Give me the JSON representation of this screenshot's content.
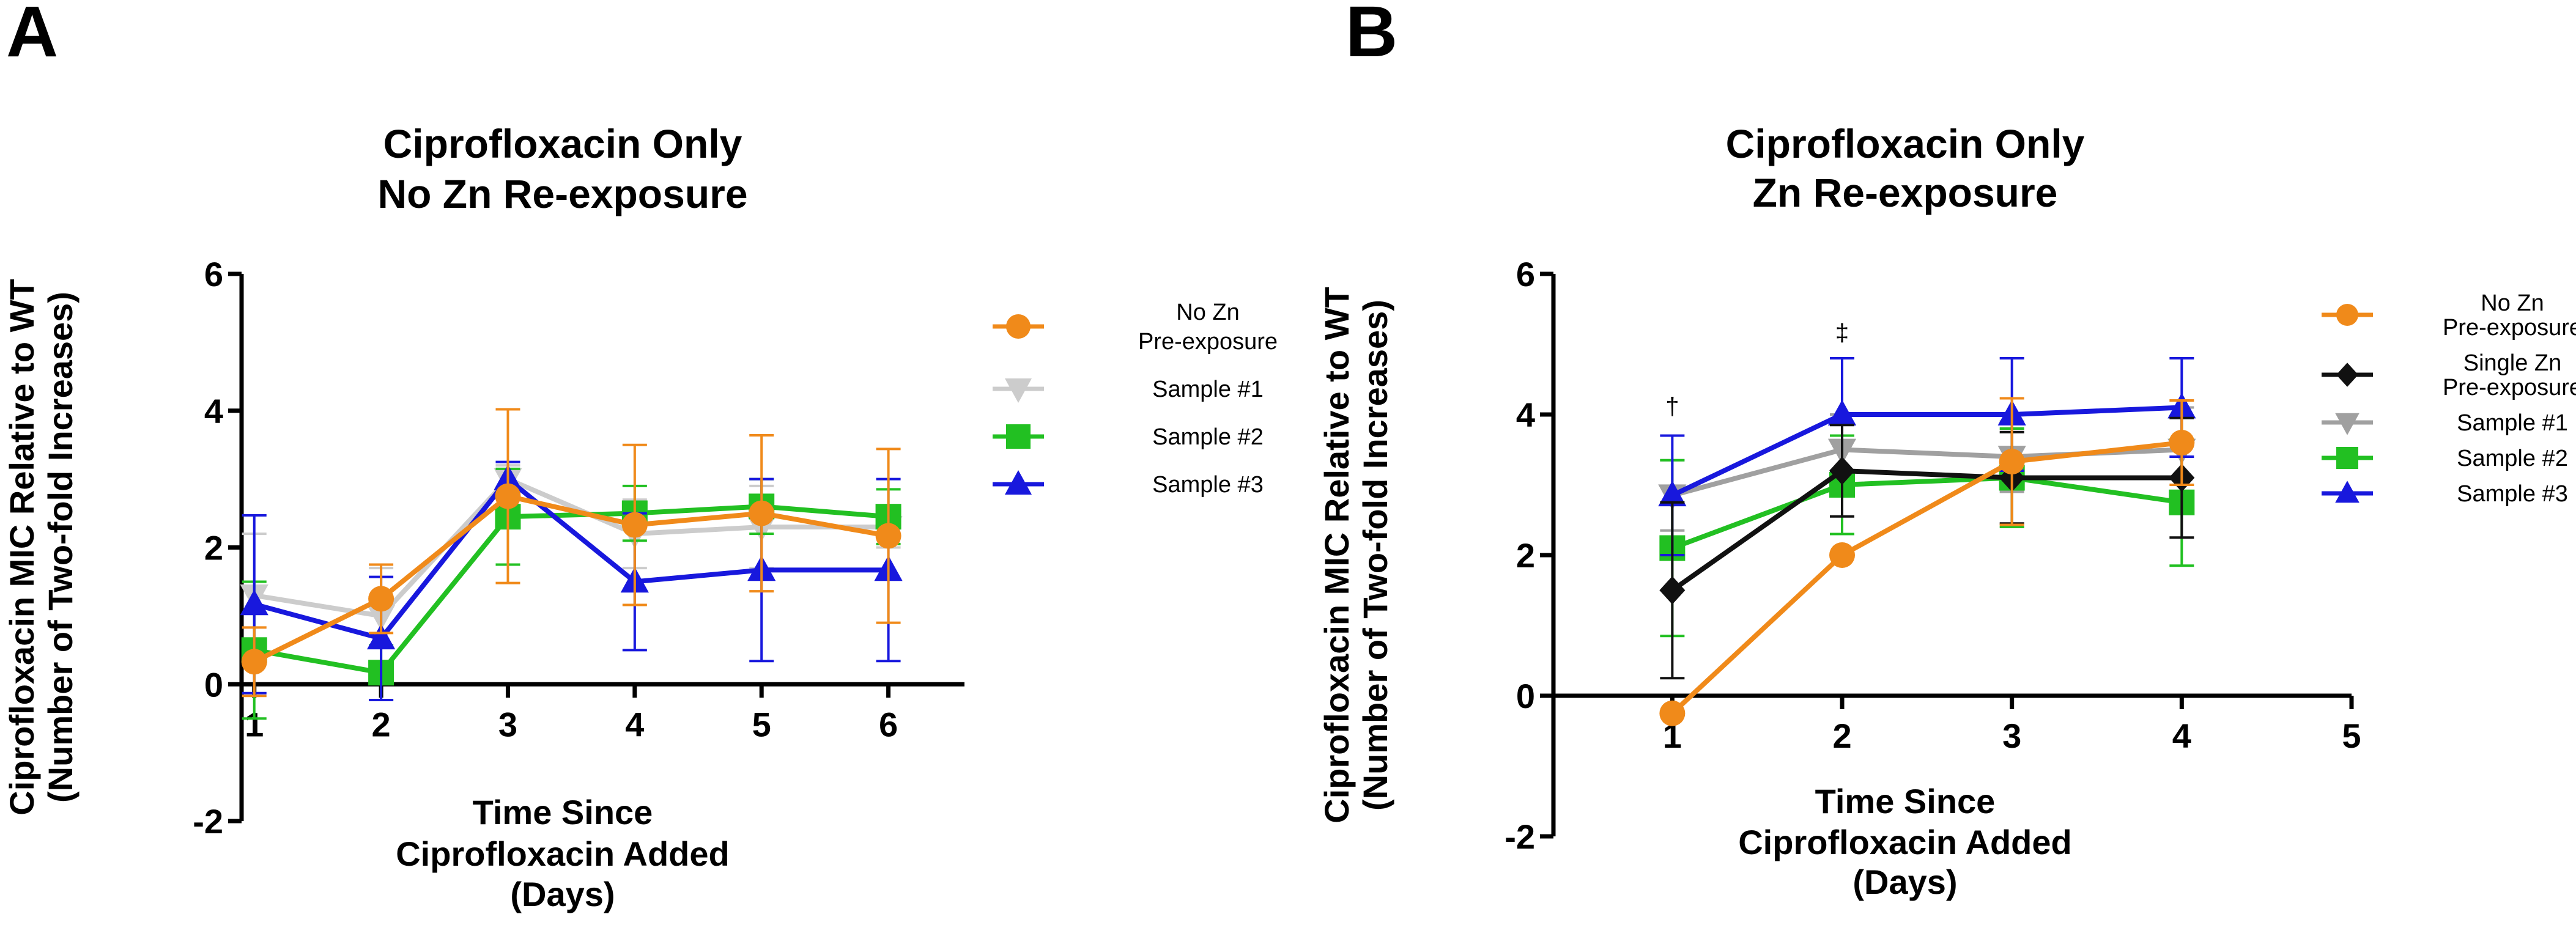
{
  "chart_data": [
    {
      "panel": "A",
      "type": "line",
      "title": [
        "Ciprofloxacin Only",
        "No Zn Re-exposure"
      ],
      "xlabel": [
        "Time Since",
        "Ciprofloxacin Added",
        "(Days)"
      ],
      "ylabel": [
        "Ciprofloxacin MIC Relative to WT",
        "(Number of Two-fold Increases)"
      ],
      "xlim": [
        0.9,
        6.6
      ],
      "ylim": [
        -2,
        6
      ],
      "xticks": [
        1,
        2,
        3,
        4,
        5,
        6
      ],
      "yticks": [
        -2,
        0,
        2,
        4,
        6
      ],
      "series": [
        {
          "name": "Sample #1",
          "legend_label": [
            "Sample #1"
          ],
          "color": "#cccccc",
          "marker": "triangle-down",
          "x": [
            1,
            2,
            3,
            4,
            5,
            6
          ],
          "y": [
            1.3,
            1.0,
            3.0,
            2.2,
            2.3,
            2.3
          ],
          "err": [
            0.9,
            0.7,
            0.2,
            0.5,
            0.6,
            0.3
          ]
        },
        {
          "name": "Sample #2",
          "legend_label": [
            "Sample #2"
          ],
          "color": "#22c022",
          "marker": "square",
          "x": [
            1,
            2,
            3,
            4,
            5,
            6
          ],
          "y": [
            0.5,
            0.17,
            2.45,
            2.5,
            2.6,
            2.45
          ],
          "err": [
            1.0,
            0.4,
            0.7,
            0.4,
            0.4,
            0.4
          ]
        },
        {
          "name": "Sample #3",
          "legend_label": [
            "Sample #3"
          ],
          "color": "#1818dd",
          "marker": "triangle-up",
          "x": [
            1,
            2,
            3,
            4,
            5,
            6
          ],
          "y": [
            1.17,
            0.67,
            3.0,
            1.5,
            1.67,
            1.67
          ],
          "err": [
            1.3,
            0.9,
            0.25,
            1.0,
            1.33,
            1.33
          ]
        },
        {
          "name": "No Zn Pre-exposure",
          "legend_label": [
            "No Zn",
            "Pre-exposure"
          ],
          "color": "#f08a1a",
          "marker": "circle",
          "x": [
            1,
            2,
            3,
            4,
            5,
            6
          ],
          "y": [
            0.33,
            1.25,
            2.75,
            2.33,
            2.5,
            2.17
          ],
          "err": [
            0.5,
            0.5,
            1.27,
            1.17,
            1.14,
            1.27
          ]
        }
      ],
      "legend_order": [
        3,
        0,
        1,
        2
      ],
      "annotations": []
    },
    {
      "panel": "B",
      "type": "line",
      "title": [
        "Ciprofloxacin Only",
        "Zn Re-exposure"
      ],
      "xlabel": [
        "Time Since",
        "Ciprofloxacin Added",
        "(Days)"
      ],
      "ylabel": [
        "Ciprofloxacin MIC Relative to WT",
        "(Number of Two-fold Increases)"
      ],
      "xlim": [
        0.3,
        5
      ],
      "ylim": [
        -2,
        6
      ],
      "xticks": [
        1,
        2,
        3,
        4,
        5
      ],
      "yticks": [
        -2,
        0,
        2,
        4,
        6
      ],
      "series": [
        {
          "name": "Sample #1",
          "legend_label": [
            "Sample #1"
          ],
          "color": "#a0a0a0",
          "marker": "triangle-down",
          "x": [
            1,
            2,
            3,
            4
          ],
          "y": [
            2.85,
            3.5,
            3.4,
            3.5
          ],
          "err": [
            0.5,
            0.5,
            0.5,
            0.6
          ]
        },
        {
          "name": "Sample #2",
          "legend_label": [
            "Sample #2"
          ],
          "color": "#22c022",
          "marker": "square",
          "x": [
            1,
            2,
            3,
            4
          ],
          "y": [
            2.1,
            3.0,
            3.1,
            2.75
          ],
          "err": [
            1.25,
            0.7,
            0.7,
            0.9
          ]
        },
        {
          "name": "Sample #3",
          "legend_label": [
            "Sample #3"
          ],
          "color": "#1818dd",
          "marker": "triangle-up",
          "x": [
            1,
            2,
            3,
            4
          ],
          "y": [
            2.85,
            4.0,
            4.0,
            4.1
          ],
          "err": [
            0.85,
            0.8,
            0.8,
            0.7
          ]
        },
        {
          "name": "Single Zn Pre-exposure",
          "legend_label": [
            "Single Zn",
            "Pre-exposure"
          ],
          "color": "#111111",
          "marker": "diamond",
          "x": [
            1,
            2,
            3,
            4
          ],
          "y": [
            1.5,
            3.2,
            3.1,
            3.1
          ],
          "err": [
            1.25,
            0.65,
            0.65,
            0.85
          ]
        },
        {
          "name": "No Zn Pre-exposure",
          "legend_label": [
            "No Zn",
            "Pre-exposure"
          ],
          "color": "#f08a1a",
          "marker": "circle",
          "x": [
            1,
            2,
            3,
            4
          ],
          "y": [
            -0.25,
            2.0,
            3.33,
            3.6
          ],
          "err": [
            0,
            0,
            0.9,
            0.6
          ]
        }
      ],
      "legend_order": [
        4,
        3,
        0,
        1,
        2
      ],
      "annotations": [
        {
          "text": "†",
          "x": 1,
          "y": 4.0
        },
        {
          "text": "‡",
          "x": 2,
          "y": 5.05
        }
      ]
    }
  ]
}
